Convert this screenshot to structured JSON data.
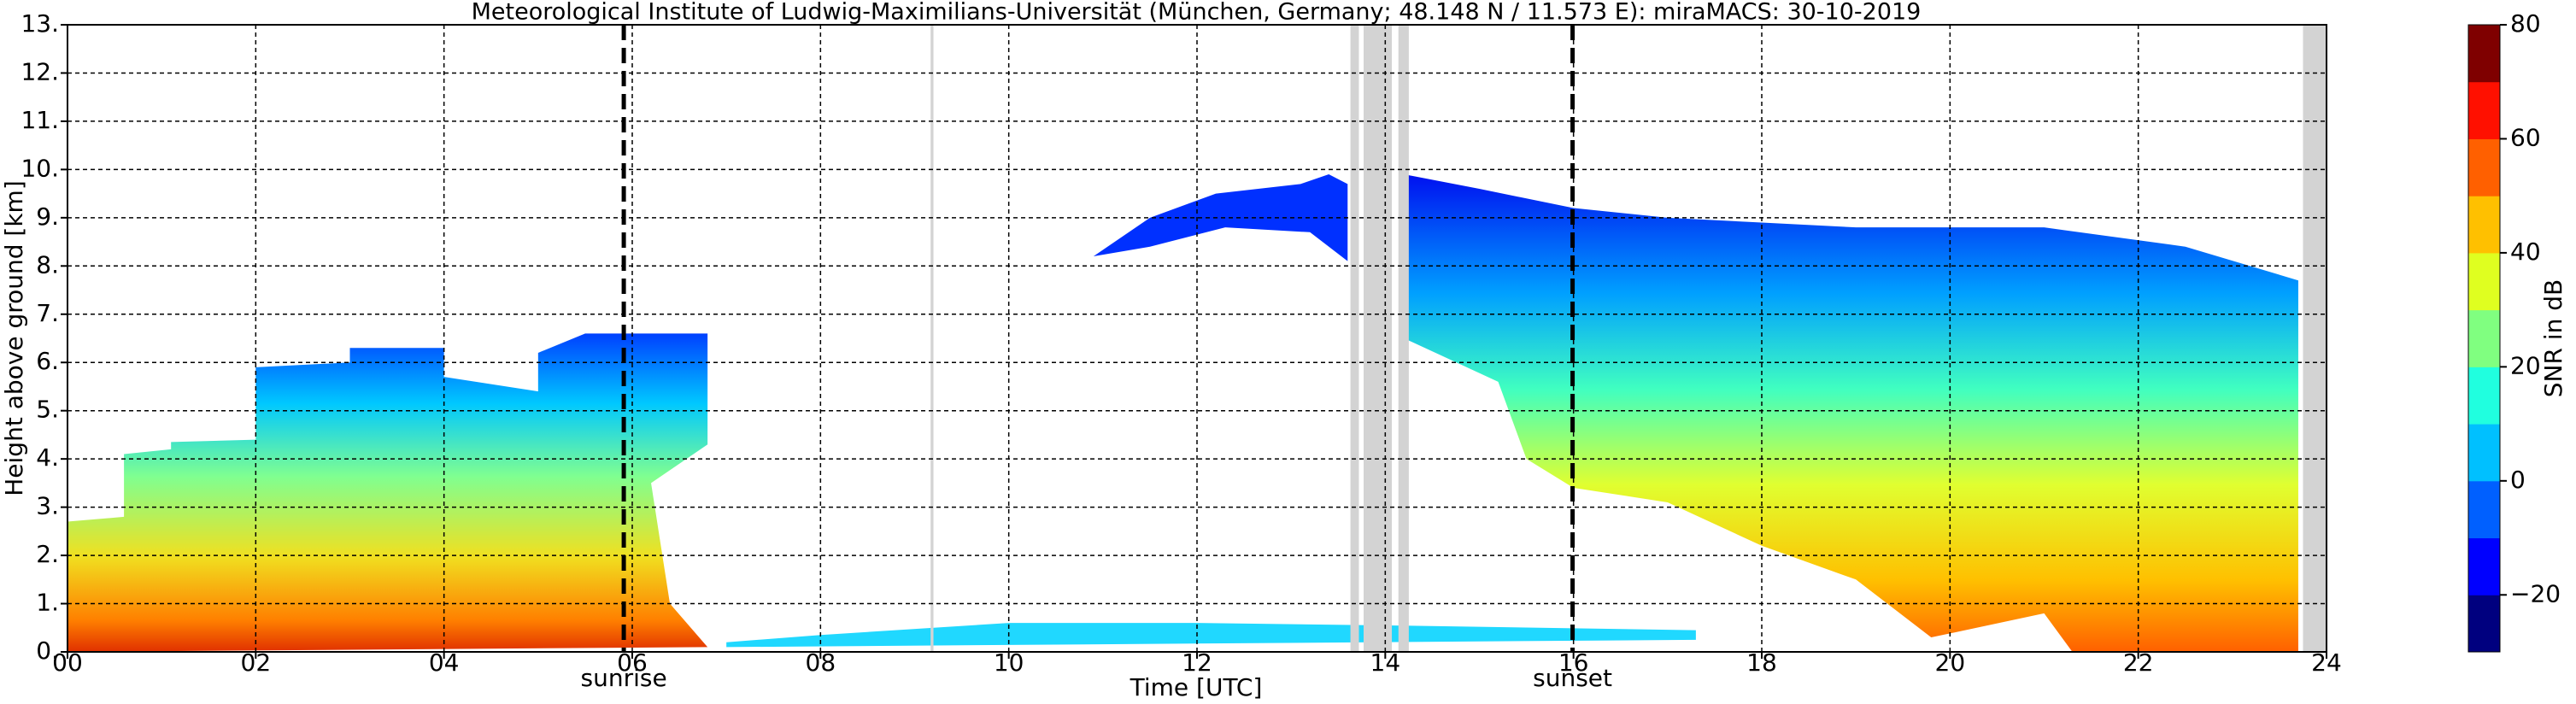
{
  "chart_data": {
    "type": "heatmap",
    "title": "Meteorological Institute of Ludwig-Maximilians-Universität (München, Germany; 48.148 N / 11.573 E):    miraMACS: 30-10-2019",
    "xlabel": "Time [UTC]",
    "ylabel": "Height above ground [km]",
    "colorbar_label": "SNR in dB",
    "xlim": [
      0,
      24
    ],
    "ylim": [
      0,
      13
    ],
    "xticks": [
      {
        "value": 0,
        "label": "00"
      },
      {
        "value": 2,
        "label": "02"
      },
      {
        "value": 4,
        "label": "04"
      },
      {
        "value": 6,
        "label": "06"
      },
      {
        "value": 8,
        "label": "08"
      },
      {
        "value": 10,
        "label": "10"
      },
      {
        "value": 12,
        "label": "12"
      },
      {
        "value": 14,
        "label": "14"
      },
      {
        "value": 16,
        "label": "16"
      },
      {
        "value": 18,
        "label": "18"
      },
      {
        "value": 20,
        "label": "20"
      },
      {
        "value": 22,
        "label": "22"
      },
      {
        "value": 24,
        "label": "24"
      }
    ],
    "yticks": [
      {
        "value": 0,
        "label": "0."
      },
      {
        "value": 1,
        "label": "1."
      },
      {
        "value": 2,
        "label": "2."
      },
      {
        "value": 3,
        "label": "3."
      },
      {
        "value": 4,
        "label": "4."
      },
      {
        "value": 5,
        "label": "5."
      },
      {
        "value": 6,
        "label": "6."
      },
      {
        "value": 7,
        "label": "7."
      },
      {
        "value": 8,
        "label": "8."
      },
      {
        "value": 9,
        "label": "9."
      },
      {
        "value": 10,
        "label": "10."
      },
      {
        "value": 11,
        "label": "11."
      },
      {
        "value": 12,
        "label": "12."
      },
      {
        "value": 13,
        "label": "13."
      }
    ],
    "clim": [
      -30,
      80
    ],
    "cticks": [
      {
        "value": -20,
        "label": "−20"
      },
      0,
      20,
      40,
      60,
      80
    ],
    "colormap": [
      "#00007f",
      "#0000ff",
      "#0060ff",
      "#00c0ff",
      "#20ffdf",
      "#80ff80",
      "#dfff20",
      "#ffc000",
      "#ff6000",
      "#ff1000",
      "#7f0000"
    ],
    "annotations": [
      {
        "label": "sunrise",
        "x": 5.91
      },
      {
        "label": "sunset",
        "x": 15.99
      }
    ],
    "missing_data": [
      [
        9.17,
        9.2
      ],
      [
        13.63,
        13.72
      ],
      [
        13.77,
        14.07
      ],
      [
        14.14,
        14.25
      ],
      [
        23.75,
        24
      ]
    ],
    "grid": true
  }
}
